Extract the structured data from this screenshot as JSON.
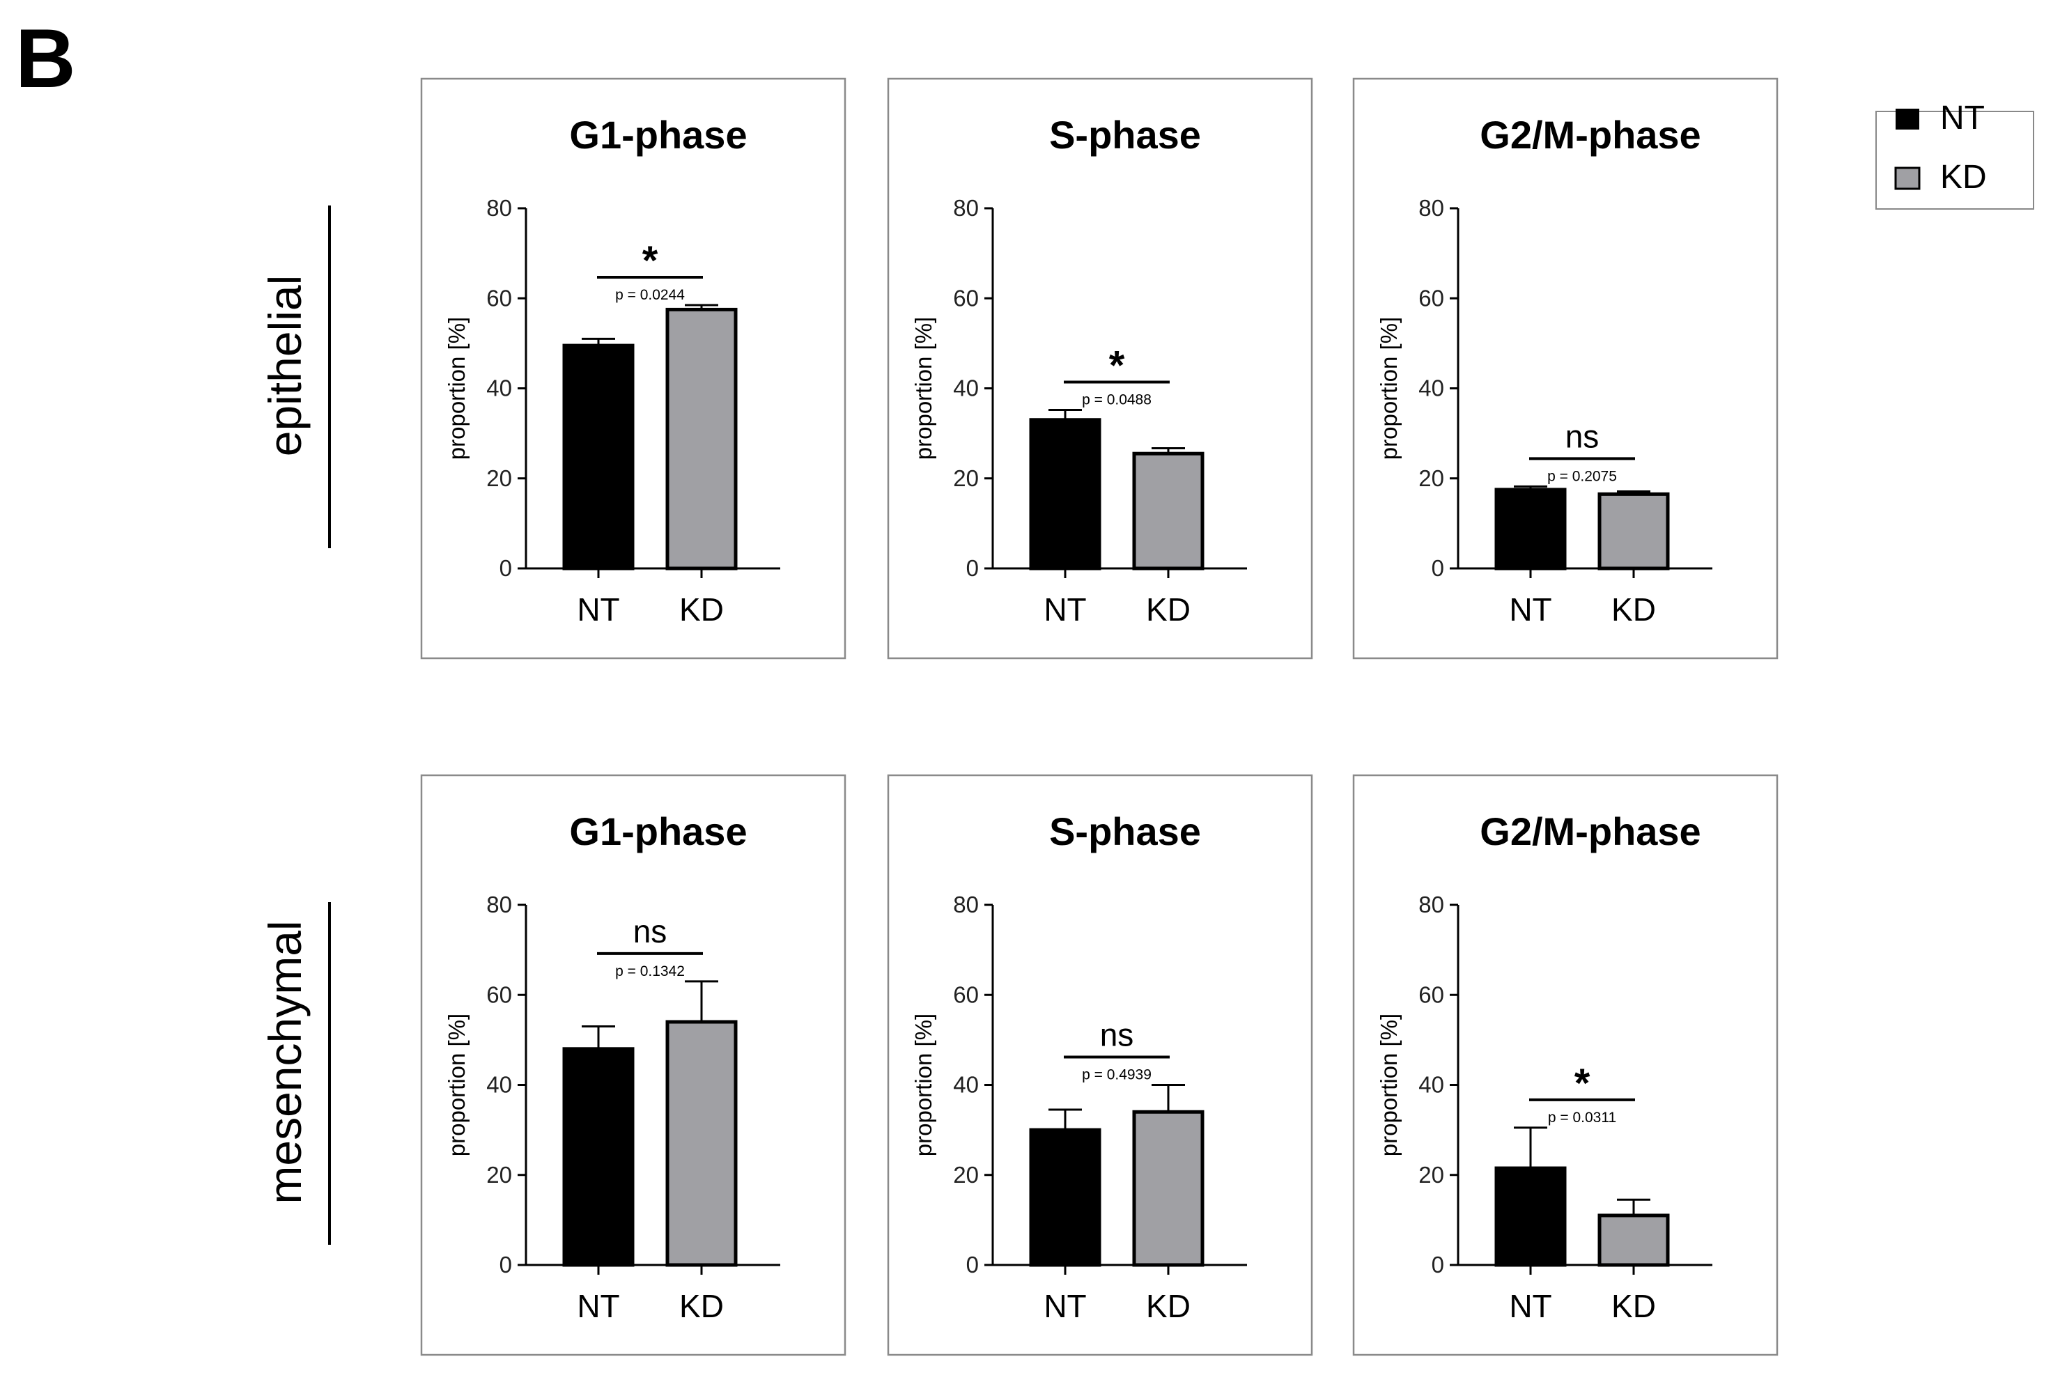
{
  "figure": {
    "panel_letter": "B",
    "row_labels": [
      "epithelial",
      "mesenchymal"
    ],
    "legend": [
      {
        "label": "NT",
        "color": "#000000"
      },
      {
        "label": "KD",
        "color": "#a0a0a4"
      }
    ]
  },
  "chart_data": [
    {
      "type": "bar",
      "row": "epithelial",
      "title": "G1-phase",
      "categories": [
        "NT",
        "KD"
      ],
      "values": [
        49.5,
        57.5
      ],
      "errors": [
        1.5,
        1.0
      ],
      "colors": [
        "#000000",
        "#a0a0a4"
      ],
      "ylabel": "proportion [%]",
      "ylim": [
        0,
        80
      ],
      "yticks": [
        "0",
        "20",
        "40",
        "60",
        "80"
      ],
      "significance": {
        "label": "*",
        "p_value": "p = 0.0244"
      }
    },
    {
      "type": "bar",
      "row": "epithelial",
      "title": "S-phase",
      "categories": [
        "NT",
        "KD"
      ],
      "values": [
        33.0,
        25.5
      ],
      "errors": [
        2.2,
        1.2
      ],
      "colors": [
        "#000000",
        "#a0a0a4"
      ],
      "ylabel": "proportion [%]",
      "ylim": [
        0,
        80
      ],
      "yticks": [
        "0",
        "20",
        "40",
        "60",
        "80"
      ],
      "significance": {
        "label": "*",
        "p_value": "p = 0.0488"
      }
    },
    {
      "type": "bar",
      "row": "epithelial",
      "title": "G2/M-phase",
      "categories": [
        "NT",
        "KD"
      ],
      "values": [
        17.5,
        16.5
      ],
      "errors": [
        0.7,
        0.6
      ],
      "colors": [
        "#000000",
        "#a0a0a4"
      ],
      "ylabel": "proportion [%]",
      "ylim": [
        0,
        80
      ],
      "yticks": [
        "0",
        "20",
        "40",
        "60",
        "80"
      ],
      "significance": {
        "label": "ns",
        "p_value": "p = 0.2075"
      }
    },
    {
      "type": "bar",
      "row": "mesenchymal",
      "title": "G1-phase",
      "categories": [
        "NT",
        "KD"
      ],
      "values": [
        48.0,
        54.0
      ],
      "errors": [
        5.0,
        9.0
      ],
      "colors": [
        "#000000",
        "#a0a0a4"
      ],
      "ylabel": "proportion [%]",
      "ylim": [
        0,
        80
      ],
      "yticks": [
        "0",
        "20",
        "40",
        "60",
        "80"
      ],
      "significance": {
        "label": "ns",
        "p_value": "p = 0.1342"
      }
    },
    {
      "type": "bar",
      "row": "mesenchymal",
      "title": "S-phase",
      "categories": [
        "NT",
        "KD"
      ],
      "values": [
        30.0,
        34.0
      ],
      "errors": [
        4.5,
        6.0
      ],
      "colors": [
        "#000000",
        "#a0a0a4"
      ],
      "ylabel": "proportion [%]",
      "ylim": [
        0,
        80
      ],
      "yticks": [
        "0",
        "20",
        "40",
        "60",
        "80"
      ],
      "significance": {
        "label": "ns",
        "p_value": "p = 0.4939"
      }
    },
    {
      "type": "bar",
      "row": "mesenchymal",
      "title": "G2/M-phase",
      "categories": [
        "NT",
        "KD"
      ],
      "values": [
        21.5,
        11.0
      ],
      "errors": [
        9.0,
        3.5
      ],
      "colors": [
        "#000000",
        "#a0a0a4"
      ],
      "ylabel": "proportion [%]",
      "ylim": [
        0,
        80
      ],
      "yticks": [
        "0",
        "20",
        "40",
        "60",
        "80"
      ],
      "significance": {
        "label": "*",
        "p_value": "p = 0.0311"
      }
    }
  ]
}
